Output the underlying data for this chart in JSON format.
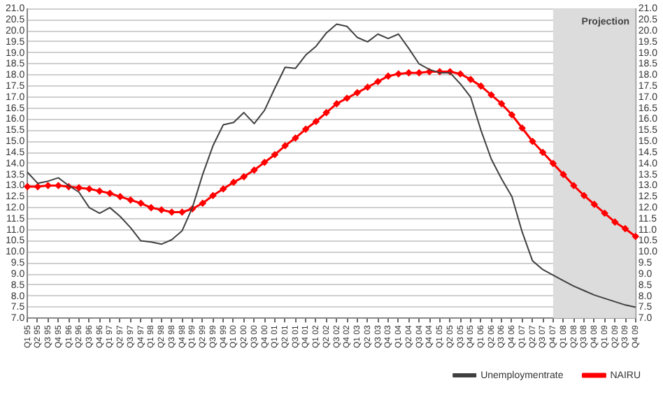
{
  "chart_data": {
    "type": "line",
    "categories": [
      "Q1 95",
      "Q2 95",
      "Q3 95",
      "Q4 95",
      "Q1 96",
      "Q2 96",
      "Q3 96",
      "Q4 96",
      "Q1 97",
      "Q2 97",
      "Q3 97",
      "Q4 97",
      "Q1 98",
      "Q2 98",
      "Q3 98",
      "Q4 98",
      "Q1 99",
      "Q2 99",
      "Q3 99",
      "Q4 99",
      "Q1 00",
      "Q2 00",
      "Q3 00",
      "Q4 00",
      "Q1 01",
      "Q2 01",
      "Q3 01",
      "Q4 01",
      "Q1 02",
      "Q2 02",
      "Q3 02",
      "Q4 02",
      "Q1 03",
      "Q2 03",
      "Q3 03",
      "Q4 03",
      "Q1 04",
      "Q2 04",
      "Q3 04",
      "Q4 04",
      "Q1 05",
      "Q2 05",
      "Q3 05",
      "Q4 05",
      "Q1 06",
      "Q2 06",
      "Q3 06",
      "Q4 06",
      "Q1 07",
      "Q2 07",
      "Q3 07",
      "Q4 07",
      "Q1 08",
      "Q2 08",
      "Q3 08",
      "Q4 08",
      "Q1 09",
      "Q2 09",
      "Q3 09",
      "Q4 09"
    ],
    "series": [
      {
        "name": "Unemploymentrate",
        "color": "#404040",
        "marker": "none",
        "values": [
          13.6,
          13.1,
          13.2,
          13.35,
          13.0,
          12.7,
          12.0,
          11.75,
          12.0,
          11.6,
          11.1,
          10.5,
          10.45,
          10.35,
          10.55,
          10.95,
          12.0,
          13.5,
          14.8,
          15.75,
          15.85,
          16.3,
          15.8,
          16.4,
          17.4,
          18.35,
          18.3,
          18.9,
          19.3,
          19.9,
          20.3,
          20.2,
          19.7,
          19.5,
          19.85,
          19.65,
          19.85,
          19.2,
          18.5,
          18.25,
          18.1,
          18.1,
          17.6,
          17.0,
          15.5,
          14.2,
          13.3,
          12.5,
          10.9,
          9.6,
          9.2,
          8.95,
          8.7,
          8.45,
          8.25,
          8.05,
          7.9,
          7.75,
          7.6,
          7.5
        ]
      },
      {
        "name": "NAIRU",
        "color": "#ff0000",
        "marker": "diamond",
        "values": [
          12.95,
          12.95,
          13.0,
          13.0,
          12.95,
          12.9,
          12.85,
          12.75,
          12.65,
          12.5,
          12.35,
          12.2,
          12.0,
          11.9,
          11.8,
          11.8,
          11.95,
          12.2,
          12.55,
          12.85,
          13.15,
          13.4,
          13.7,
          14.05,
          14.4,
          14.8,
          15.15,
          15.55,
          15.9,
          16.3,
          16.7,
          16.95,
          17.2,
          17.45,
          17.7,
          17.95,
          18.05,
          18.1,
          18.1,
          18.15,
          18.15,
          18.15,
          18.05,
          17.8,
          17.5,
          17.1,
          16.7,
          16.2,
          15.6,
          15.0,
          14.5,
          14.0,
          13.5,
          13.0,
          12.55,
          12.15,
          11.75,
          11.35,
          11.05,
          10.7
        ]
      }
    ],
    "ylim": [
      7.0,
      21.0
    ],
    "yticks": [
      {
        "value": 7,
        "label": "7.0"
      },
      7.5,
      {
        "value": 8,
        "label": "8.0"
      },
      8.5,
      {
        "value": 9,
        "label": "9.0"
      },
      9.5,
      {
        "value": 10,
        "label": "10.0"
      },
      10.5,
      {
        "value": 11,
        "label": "11.0"
      },
      11.5,
      {
        "value": 12,
        "label": "12.0"
      },
      12.5,
      {
        "value": 13,
        "label": "13.0"
      },
      13.5,
      {
        "value": 14,
        "label": "14.0"
      },
      14.5,
      {
        "value": 15,
        "label": "15.0"
      },
      15.5,
      {
        "value": 16,
        "label": "16.0"
      },
      16.5,
      {
        "value": 17,
        "label": "17.0"
      },
      17.5,
      {
        "value": 18,
        "label": "18.0"
      },
      18.5,
      {
        "value": 19,
        "label": "19.0"
      },
      19.5,
      {
        "value": 20,
        "label": "20.0"
      },
      20.5,
      {
        "value": 21,
        "label": "21.0"
      }
    ],
    "y2lim": [
      7.0,
      21.0
    ],
    "y2ticks": [
      {
        "value": 7,
        "label": "7.0"
      },
      7.5,
      {
        "value": 8,
        "label": "8.0"
      },
      8.5,
      {
        "value": 9,
        "label": "9.0"
      },
      9.5,
      {
        "value": 10,
        "label": "10.0"
      },
      10.5,
      {
        "value": 11,
        "label": "11.0"
      },
      11.5,
      {
        "value": 12,
        "label": "12.0"
      },
      12.5,
      {
        "value": 13,
        "label": "13.0"
      },
      13.5,
      {
        "value": 14,
        "label": "14.0"
      },
      14.5,
      {
        "value": 15,
        "label": "15.0"
      },
      15.5,
      {
        "value": 16,
        "label": "16.0"
      },
      16.5,
      {
        "value": 17,
        "label": "17.0"
      },
      17.5,
      {
        "value": 18,
        "label": "18.0"
      },
      18.5,
      {
        "value": 19,
        "label": "19.0"
      },
      19.5,
      {
        "value": 20,
        "label": "20.0"
      },
      20.5,
      {
        "value": 21,
        "label": "21.0"
      }
    ],
    "bands": [
      {
        "axis": "x",
        "from": "Q4 07",
        "to": "Q4 09",
        "label": "Projection",
        "color": "#dcdcdc"
      }
    ],
    "grid": "y",
    "legend": "bottom",
    "line_style": "solid"
  }
}
